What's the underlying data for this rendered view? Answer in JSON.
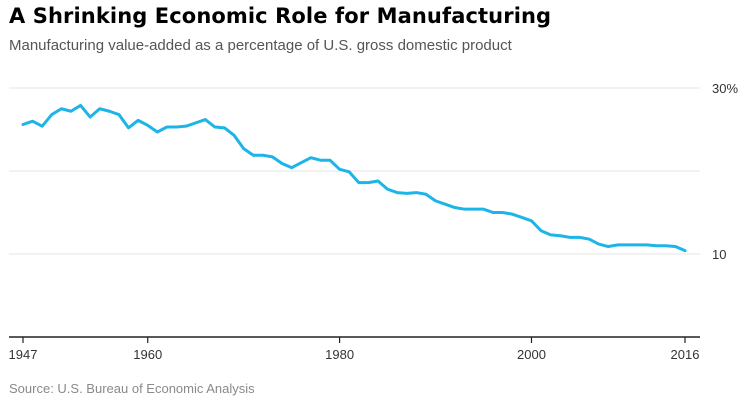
{
  "header": {
    "title": "A Shrinking Economic Role for Manufacturing",
    "subtitle": "Manufacturing value-added as a percentage of U.S. gross domestic product"
  },
  "footer": {
    "source": "Source: U.S. Bureau of Economic Analysis"
  },
  "colors": {
    "line": "#1db4e8",
    "grid": "#e6e6e6",
    "axis": "#222222"
  },
  "chart_data": {
    "type": "line",
    "title": "A Shrinking Economic Role for Manufacturing",
    "subtitle": "Manufacturing value-added as a percentage of U.S. gross domestic product",
    "xlabel": "",
    "ylabel": "",
    "xlim": [
      1947,
      2016
    ],
    "ylim": [
      0,
      30
    ],
    "x_ticks": [
      1947,
      1960,
      1980,
      2000,
      2016
    ],
    "x_tick_labels": [
      "1947",
      "1960",
      "1980",
      "2000",
      "2016"
    ],
    "y_ticks": [
      10,
      30
    ],
    "y_tick_labels": [
      "10",
      "30%"
    ],
    "grid": "horizontal",
    "series": [
      {
        "x": [
          1947,
          1948,
          1949,
          1950,
          1951,
          1952,
          1953,
          1954,
          1955,
          1956,
          1957,
          1958,
          1959,
          1960,
          1961,
          1962,
          1963,
          1964,
          1965,
          1966,
          1967,
          1968,
          1969,
          1970,
          1971,
          1972,
          1973,
          1974,
          1975,
          1976,
          1977,
          1978,
          1979,
          1980,
          1981,
          1982,
          1983,
          1984,
          1985,
          1986,
          1987,
          1988,
          1989,
          1990,
          1991,
          1992,
          1993,
          1994,
          1995,
          1996,
          1997,
          1998,
          1999,
          2000,
          2001,
          2002,
          2003,
          2004,
          2005,
          2006,
          2007,
          2008,
          2009,
          2010,
          2011,
          2012,
          2013,
          2014,
          2015,
          2016
        ],
        "values": [
          25.6,
          26.0,
          25.4,
          26.8,
          27.5,
          27.2,
          27.9,
          26.5,
          27.5,
          27.2,
          26.8,
          25.2,
          26.1,
          25.5,
          24.7,
          25.3,
          25.3,
          25.4,
          25.8,
          26.2,
          25.3,
          25.2,
          24.3,
          22.7,
          21.9,
          21.9,
          21.7,
          20.9,
          20.4,
          21.0,
          21.6,
          21.3,
          21.3,
          20.2,
          19.9,
          18.6,
          18.6,
          18.8,
          17.8,
          17.4,
          17.3,
          17.4,
          17.2,
          16.4,
          16.0,
          15.6,
          15.4,
          15.4,
          15.4,
          15.0,
          15.0,
          14.8,
          14.4,
          14.0,
          12.8,
          12.3,
          12.2,
          12.0,
          12.0,
          11.8,
          11.2,
          10.9,
          11.1,
          11.1,
          11.1,
          11.1,
          11.0,
          11.0,
          10.9,
          10.4
        ]
      }
    ]
  }
}
